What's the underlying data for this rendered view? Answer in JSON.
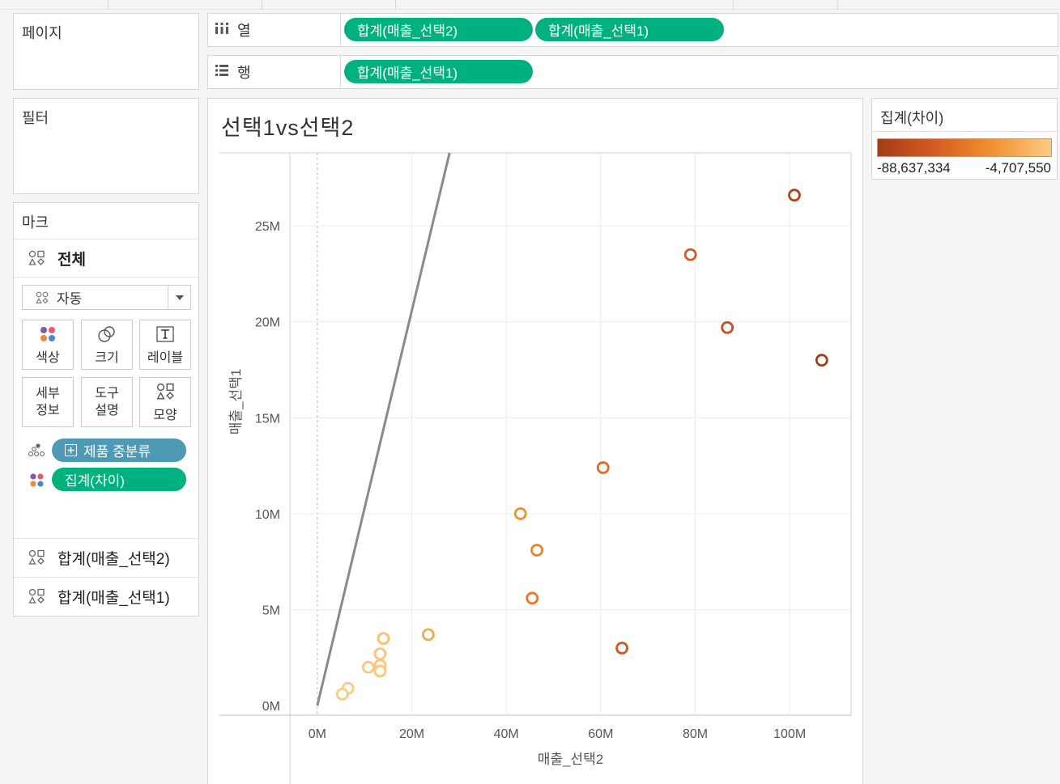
{
  "shelves": {
    "pages_title": "페이지",
    "filters_title": "필터",
    "columns_label": "열",
    "rows_label": "행",
    "columns_pills": [
      "합계(매출_선택2)",
      "합계(매출_선택1)"
    ],
    "rows_pills": [
      "합계(매출_선택1)"
    ]
  },
  "marks": {
    "title": "마크",
    "all_label": "전체",
    "mark_type": "자동",
    "buttons": {
      "color": "색상",
      "size": "크기",
      "label": "레이블",
      "detail_line1": "세부",
      "detail_line2": "정보",
      "tooltip_line1": "도구",
      "tooltip_line2": "설명",
      "shape": "모양"
    },
    "fields": {
      "detail_pill": "제품 중분류",
      "color_pill": "집계(차이)"
    },
    "axis_cards": [
      "합계(매출_선택2)",
      "합계(매출_선택1)"
    ]
  },
  "legend": {
    "title": "집계(차이)",
    "min_label": "-88,637,334",
    "max_label": "-4,707,550"
  },
  "colors": {
    "pill_green": "#00b180",
    "pill_blue": "#4e9ab4",
    "grid": "#ececec",
    "reference_line": "#8a8a8a"
  },
  "chart_data": {
    "type": "scatter",
    "title": "선택1vs선택2",
    "xlabel": "매출_선택2",
    "ylabel": "매출_선택1",
    "x_ticks": [
      "0M",
      "20M",
      "40M",
      "60M",
      "80M",
      "100M"
    ],
    "y_ticks": [
      "0M",
      "5M",
      "10M",
      "15M",
      "20M",
      "25M"
    ],
    "xlim": [
      -5.8,
      113
    ],
    "ylim": [
      -0.5,
      28.8
    ],
    "grid": true,
    "mark_shape": "hollow-circle",
    "reference_line": {
      "from": [
        0,
        0
      ],
      "to": [
        28,
        28.8
      ]
    },
    "color_field": "집계(차이)",
    "points": [
      {
        "x": 101.0,
        "y": 26.6,
        "color": "#b3411c"
      },
      {
        "x": 79.0,
        "y": 23.5,
        "color": "#d45a24"
      },
      {
        "x": 86.8,
        "y": 19.7,
        "color": "#c84d1f"
      },
      {
        "x": 106.8,
        "y": 18.0,
        "color": "#a63c1a"
      },
      {
        "x": 60.5,
        "y": 12.4,
        "color": "#e06a28"
      },
      {
        "x": 43.0,
        "y": 10.0,
        "color": "#f0902e"
      },
      {
        "x": 46.5,
        "y": 8.1,
        "color": "#ec822c"
      },
      {
        "x": 45.5,
        "y": 5.6,
        "color": "#e9782a"
      },
      {
        "x": 64.5,
        "y": 3.0,
        "color": "#d1581f"
      },
      {
        "x": 23.5,
        "y": 3.7,
        "color": "#f6a94b"
      },
      {
        "x": 14.0,
        "y": 3.5,
        "color": "#fbbf6f"
      },
      {
        "x": 13.3,
        "y": 2.7,
        "color": "#fbc377"
      },
      {
        "x": 13.3,
        "y": 2.1,
        "color": "#fcc67c"
      },
      {
        "x": 13.3,
        "y": 1.8,
        "color": "#fcc67c"
      },
      {
        "x": 10.8,
        "y": 2.0,
        "color": "#fcc67c"
      },
      {
        "x": 6.5,
        "y": 0.9,
        "color": "#fdca84"
      },
      {
        "x": 5.3,
        "y": 0.6,
        "color": "#fdca84"
      }
    ]
  }
}
